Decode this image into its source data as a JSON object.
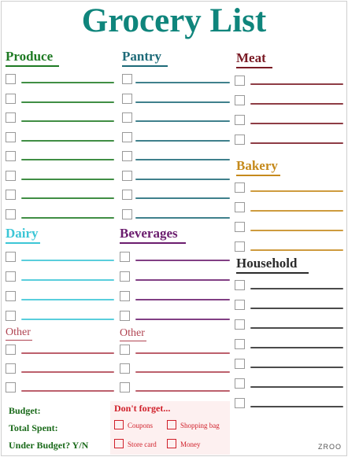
{
  "title": "Grocery List",
  "colors": {
    "title": "#0f857c",
    "produce": "#1e7a23",
    "pantry": "#1d6a78",
    "meat": "#7a1a24",
    "bakery": "#c58a1c",
    "dairy": "#3cc6d6",
    "beverages": "#6b1d6e",
    "household": "#2b2b2b",
    "other": "#b04452",
    "budget": "#1a6a1a",
    "forget": "#d0202a"
  },
  "sections": {
    "produce": {
      "label": "Produce"
    },
    "pantry": {
      "label": "Pantry"
    },
    "meat": {
      "label": "Meat"
    },
    "bakery": {
      "label": "Bakery"
    },
    "dairy": {
      "label": "Dairy"
    },
    "beverages": {
      "label": "Beverages"
    },
    "household": {
      "label": "Household"
    },
    "other_left": {
      "label": "Other"
    },
    "other_mid": {
      "label": "Other"
    }
  },
  "budget": {
    "budget_label": "Budget:",
    "total_label": "Total Spent:",
    "under_label": "Under Budget? Y/N"
  },
  "forget": {
    "title": "Don't forget...",
    "items": [
      "Coupons",
      "Shopping bag",
      "Store card",
      "Money"
    ]
  },
  "logo": "ZROO"
}
